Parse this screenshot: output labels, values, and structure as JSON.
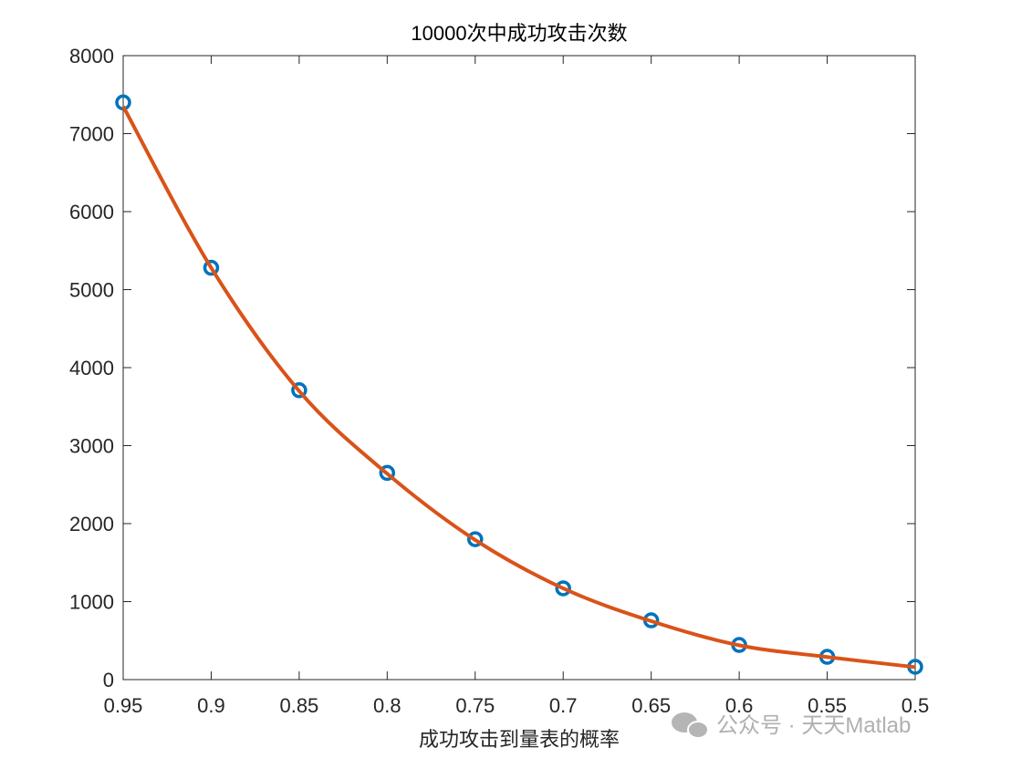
{
  "chart_data": {
    "type": "line",
    "title": "10000次中成功攻击次数",
    "x_label": "成功攻击到量表的概率",
    "x": [
      0.95,
      0.9,
      0.85,
      0.8,
      0.75,
      0.7,
      0.65,
      0.6,
      0.55,
      0.5
    ],
    "series": [
      {
        "color": "#0072bd",
        "marker": "circle",
        "values": [
          7400,
          5280,
          3710,
          2650,
          1800,
          1170,
          760,
          444,
          292,
          164
        ]
      },
      {
        "color": "#d95319",
        "marker": "none",
        "values": [
          7350,
          5280,
          3700,
          2640,
          1790,
          1170,
          750,
          440,
          290,
          160
        ]
      }
    ],
    "xlim": [
      0.95,
      0.5
    ],
    "xticks": [
      0.95,
      0.9,
      0.85,
      0.8,
      0.75,
      0.7,
      0.65,
      0.6,
      0.55,
      0.5
    ],
    "ylim": [
      0,
      8000
    ],
    "yticks": [
      0,
      1000,
      2000,
      3000,
      4000,
      5000,
      6000,
      7000,
      8000
    ],
    "grid": false,
    "watermark": "公众号 · 天天Matlab"
  }
}
